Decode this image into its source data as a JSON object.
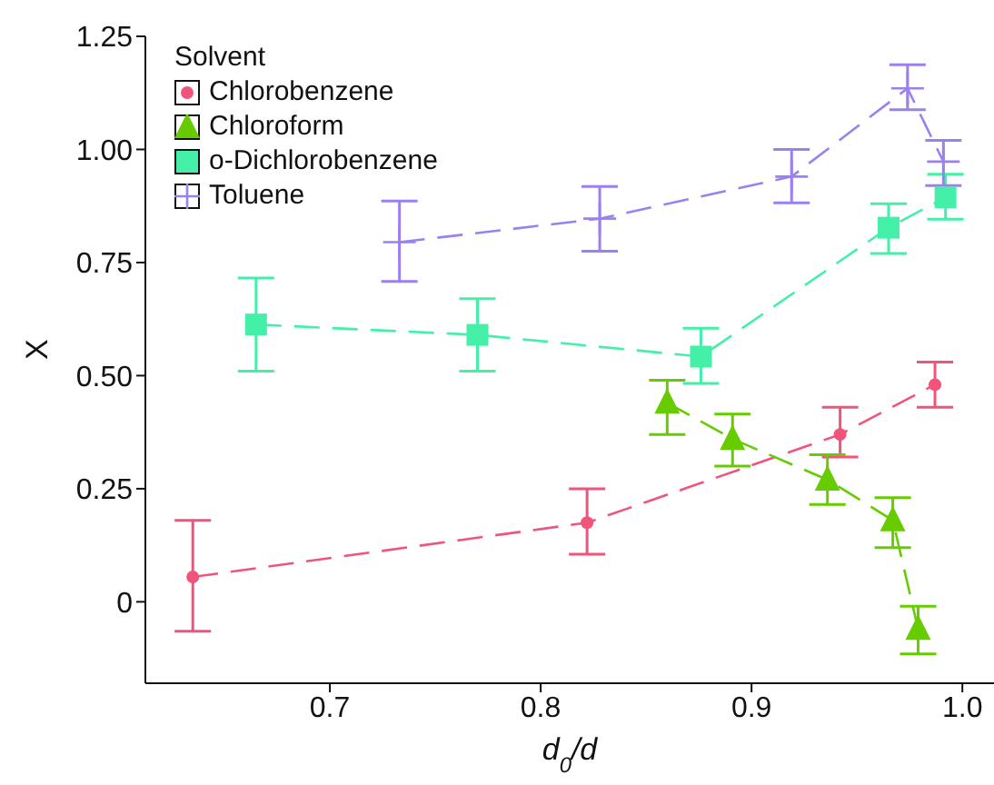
{
  "chart_data": {
    "type": "line",
    "xlabel": "d$_{0}$/d",
    "ylabel": "X",
    "legend_title": "Solvent",
    "legend": "top left",
    "line_style": "dashed",
    "xlim": [
      0.6125,
      1.015
    ],
    "xticks": [
      0.7,
      0.8,
      0.9,
      {
        "value": 1.0,
        "label": "1.0"
      }
    ],
    "ylim": [
      -0.18,
      1.25
    ],
    "yticks": [
      {
        "value": 0,
        "label": "0"
      },
      {
        "value": 0.25,
        "label": "0.25"
      },
      {
        "value": 0.5,
        "label": "0.50"
      },
      {
        "value": 0.75,
        "label": "0.75"
      },
      {
        "value": 1.0,
        "label": "1.00"
      },
      {
        "value": 1.25,
        "label": "1.25"
      }
    ],
    "series": [
      {
        "name": "Chlorobenzene",
        "color": "#f0547a",
        "marker": "circle",
        "x": [
          0.635,
          0.822,
          0.942,
          0.987
        ],
        "values": [
          0.055,
          0.175,
          0.37,
          0.48
        ],
        "errors": [
          [
            -0.065,
            0.18
          ],
          [
            0.105,
            0.25
          ],
          [
            0.32,
            0.43
          ],
          [
            0.43,
            0.53
          ]
        ]
      },
      {
        "name": "Chloroform",
        "color": "#66cc00",
        "marker": "triangle",
        "x": [
          0.86,
          0.891,
          0.936,
          0.967,
          0.979
        ],
        "values": [
          0.44,
          0.36,
          0.27,
          0.18,
          -0.06
        ],
        "errors": [
          [
            0.37,
            0.49
          ],
          [
            0.3,
            0.415
          ],
          [
            0.215,
            0.325
          ],
          [
            0.12,
            0.23
          ],
          [
            -0.115,
            -0.01
          ]
        ]
      },
      {
        "name": "o-Dichlorobenzene",
        "color": "#44f0a8",
        "marker": "square",
        "x": [
          0.665,
          0.77,
          0.876,
          0.965,
          0.992
        ],
        "values": [
          0.613,
          0.59,
          0.542,
          0.827,
          0.894
        ],
        "errors": [
          [
            0.51,
            0.716
          ],
          [
            0.51,
            0.67
          ],
          [
            0.483,
            0.605
          ],
          [
            0.77,
            0.88
          ],
          [
            0.846,
            0.945
          ]
        ]
      },
      {
        "name": "Toluene",
        "color": "#9a80f0",
        "marker": "cross",
        "x": [
          0.733,
          0.828,
          0.919,
          0.974,
          0.991
        ],
        "values": [
          0.795,
          0.847,
          0.94,
          1.135,
          0.973
        ],
        "errors": [
          [
            0.708,
            0.886
          ],
          [
            0.775,
            0.918
          ],
          [
            0.882,
            1.0
          ],
          [
            1.088,
            1.187
          ],
          [
            0.92,
            1.02
          ]
        ]
      }
    ]
  }
}
